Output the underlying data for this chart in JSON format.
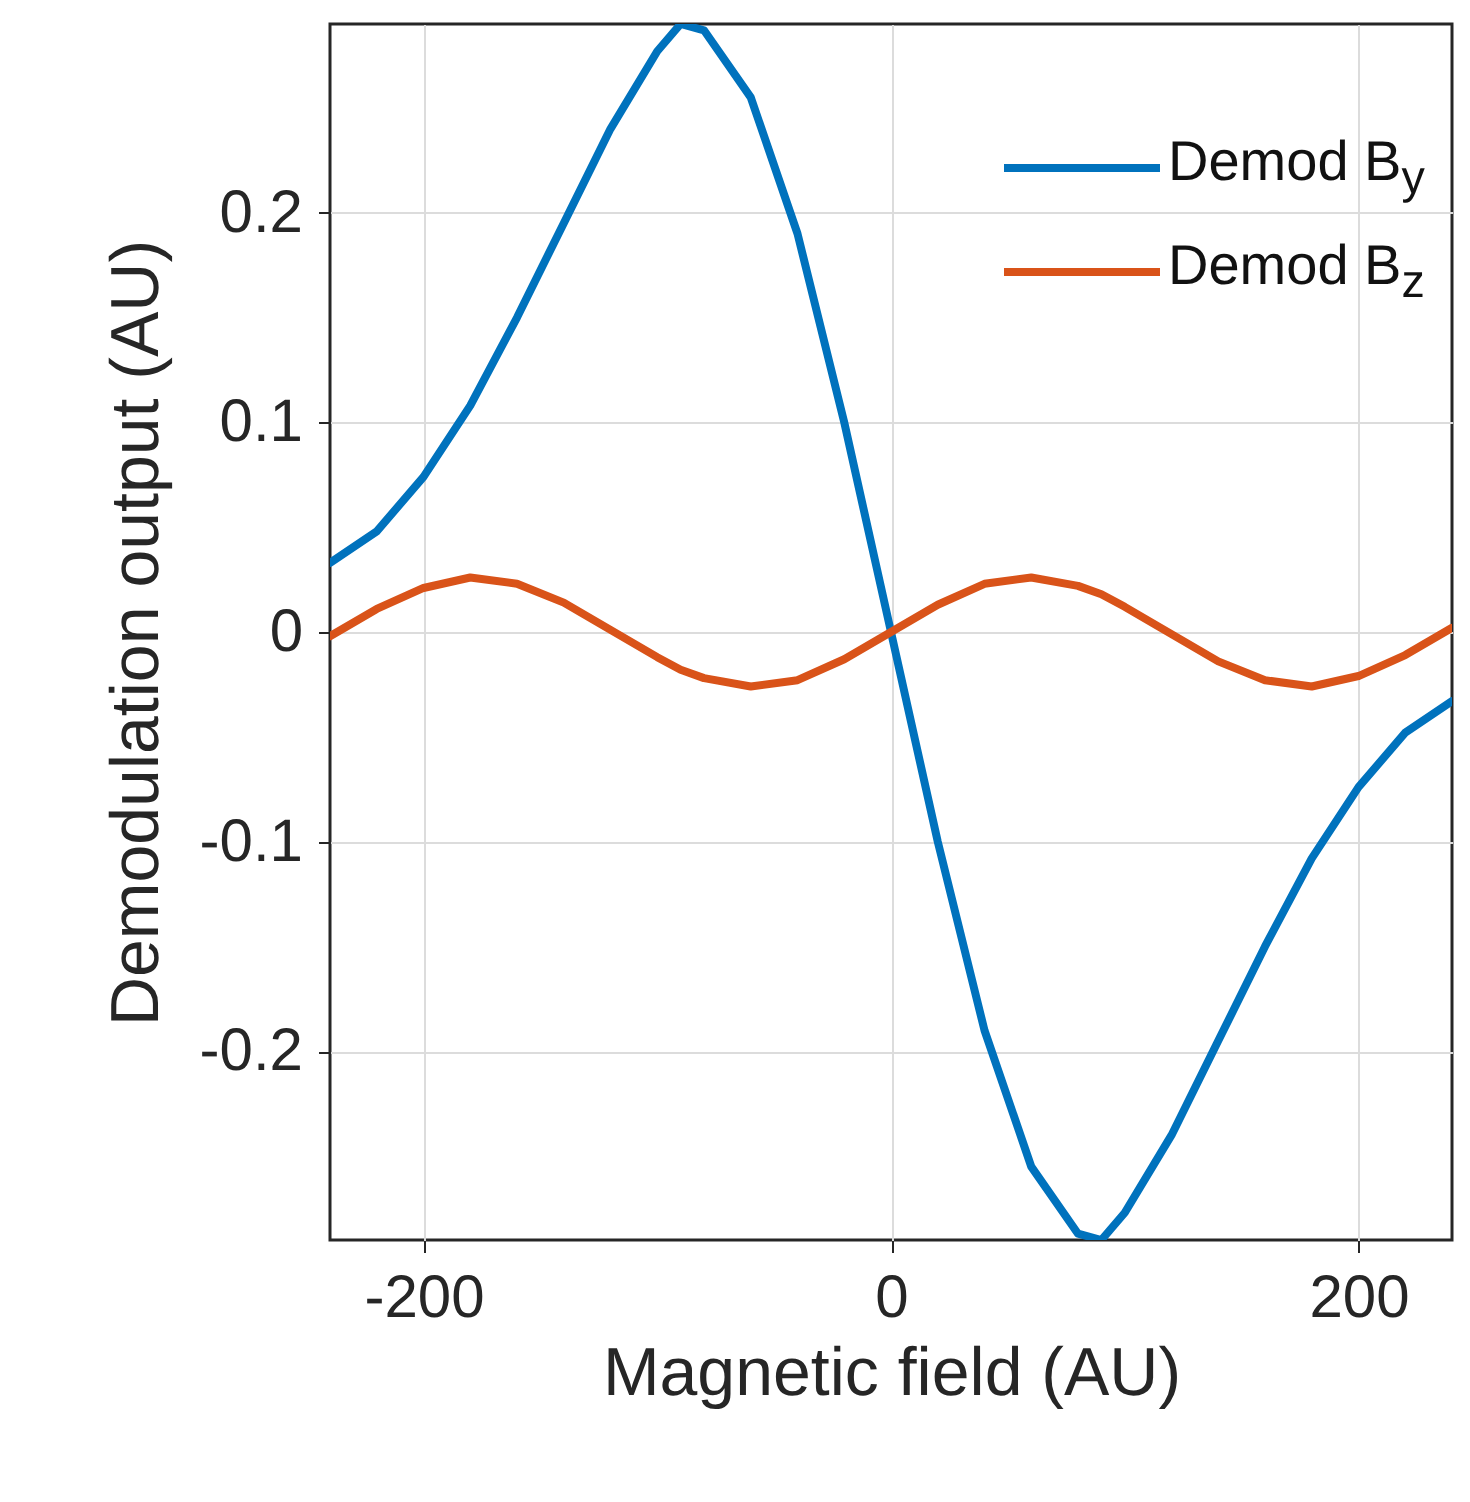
{
  "chart_data": {
    "type": "line",
    "xlabel": "Magnetic field (AU)",
    "ylabel": "Demodulation output (AU)",
    "xlim": [
      -240,
      240
    ],
    "ylim": [
      -0.29,
      0.29
    ],
    "xticks": [
      -200,
      0,
      200
    ],
    "yticks": [
      -0.2,
      -0.1,
      0,
      0.1,
      0.2
    ],
    "grid": true,
    "legend": "top right",
    "line_style": "solid",
    "marker": "none",
    "x": [
      -240,
      -220,
      -200,
      -180,
      -160,
      -140,
      -120,
      -100,
      -90,
      -80,
      -60,
      -40,
      -20,
      0,
      20,
      40,
      60,
      80,
      90,
      100,
      120,
      140,
      160,
      180,
      200,
      220,
      240
    ],
    "series": [
      {
        "name": "Demod B$_{y}$",
        "color": "#0072bd",
        "values": [
          0.033,
          0.048,
          0.074,
          0.108,
          0.15,
          0.195,
          0.24,
          0.277,
          0.29,
          0.287,
          0.255,
          0.19,
          0.1,
          0,
          -0.1,
          -0.19,
          -0.255,
          -0.287,
          -0.29,
          -0.277,
          -0.24,
          -0.195,
          -0.15,
          -0.108,
          -0.074,
          -0.048,
          -0.033
        ]
      },
      {
        "name": "Demod B$_{z}$",
        "color": "#d95319",
        "values": [
          -0.002,
          0.011,
          0.021,
          0.026,
          0.023,
          0.014,
          0.001,
          -0.012,
          -0.018,
          -0.022,
          -0.026,
          -0.023,
          -0.013,
          0,
          0.013,
          0.023,
          0.026,
          0.022,
          0.018,
          0.012,
          -0.001,
          -0.014,
          -0.023,
          -0.026,
          -0.021,
          -0.011,
          0.002
        ]
      }
    ]
  }
}
